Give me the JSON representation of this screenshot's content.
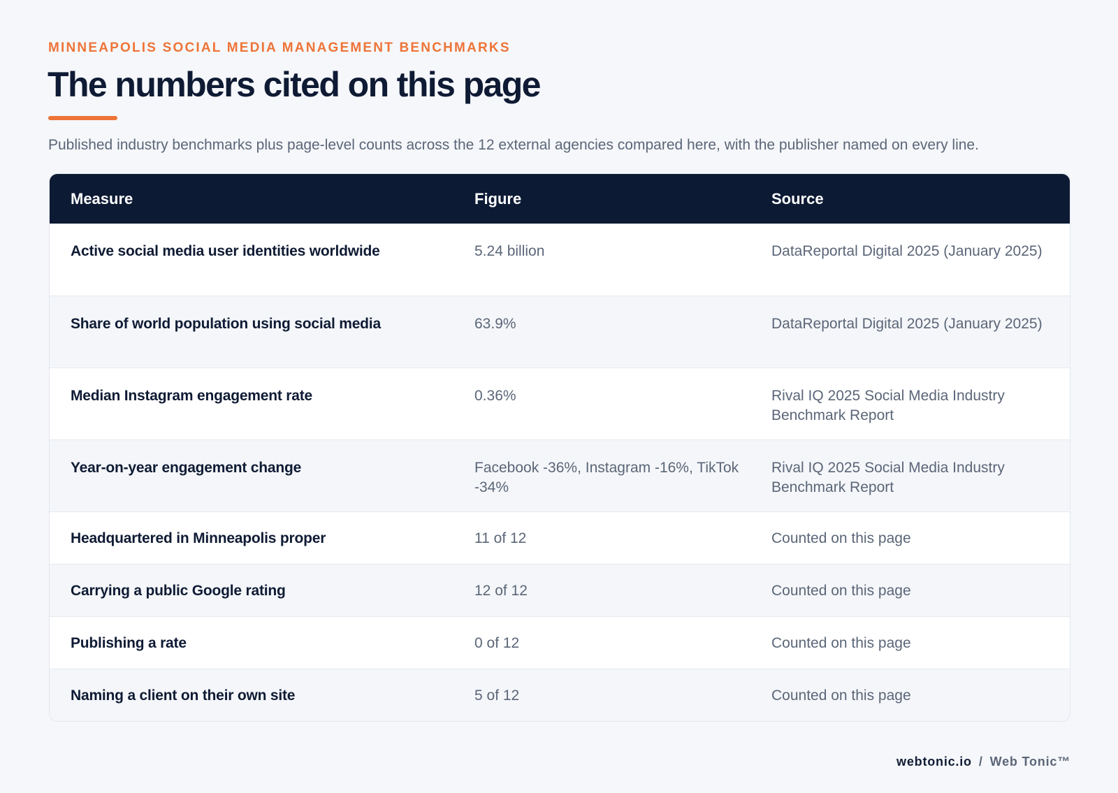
{
  "header": {
    "eyebrow": "MINNEAPOLIS SOCIAL MEDIA MANAGEMENT BENCHMARKS",
    "title": "The numbers cited on this page",
    "subtitle": "Published industry benchmarks plus page-level counts across the 12 external agencies compared here, with the publisher named on every line."
  },
  "table": {
    "columns": [
      "Measure",
      "Figure",
      "Source"
    ],
    "rows": [
      {
        "measure": "Active social media user identities worldwide",
        "figure": "5.24 billion",
        "source": "DataReportal Digital 2025 (January 2025)"
      },
      {
        "measure": "Share of world population using social media",
        "figure": "63.9%",
        "source": "DataReportal Digital 2025 (January 2025)"
      },
      {
        "measure": "Median Instagram engagement rate",
        "figure": "0.36%",
        "source": "Rival IQ 2025 Social Media Industry Benchmark Report"
      },
      {
        "measure": "Year-on-year engagement change",
        "figure": "Facebook -36%, Instagram -16%, TikTok -34%",
        "source": "Rival IQ 2025 Social Media Industry Benchmark Report"
      },
      {
        "measure": "Headquartered in Minneapolis proper",
        "figure": "11 of 12",
        "source": "Counted on this page"
      },
      {
        "measure": "Carrying a public Google rating",
        "figure": "12 of 12",
        "source": "Counted on this page"
      },
      {
        "measure": "Publishing a rate",
        "figure": "0 of 12",
        "source": "Counted on this page"
      },
      {
        "measure": "Naming a client on their own site",
        "figure": "5 of 12",
        "source": "Counted on this page"
      }
    ]
  },
  "footer": {
    "domain": "webtonic.io",
    "separator": "/",
    "brand": "Web Tonic™"
  },
  "colors": {
    "accent": "#ee7438",
    "navy": "#0d1a34",
    "background": "#f5f7fa"
  }
}
